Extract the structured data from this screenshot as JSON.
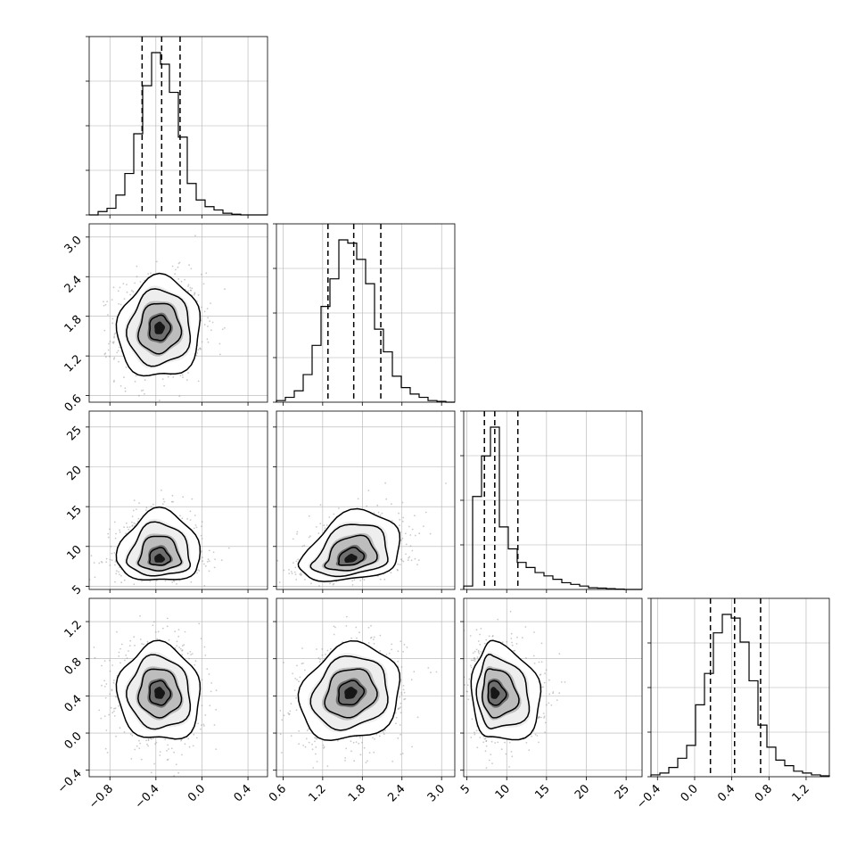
{
  "chart_data": {
    "type": "corner",
    "title": "",
    "grid": true,
    "parameters": [
      {
        "range": [
          -0.98,
          0.57
        ],
        "ticks": [
          -0.8,
          -0.4,
          0.0,
          0.4
        ],
        "tick_labels": [
          "−0.8",
          "−0.4",
          "0.0",
          "0.4"
        ],
        "quantiles": [
          -0.52,
          -0.35,
          -0.19
        ]
      },
      {
        "range": [
          0.5,
          3.2
        ],
        "ticks": [
          0.6,
          1.2,
          1.8,
          2.4,
          3.0
        ],
        "tick_labels": [
          "0.6",
          "1.2",
          "1.8",
          "2.4",
          "3.0"
        ],
        "quantiles": [
          1.28,
          1.67,
          2.08
        ]
      },
      {
        "range": [
          4.6,
          27.0
        ],
        "ticks": [
          5,
          10,
          15,
          20,
          25
        ],
        "tick_labels": [
          "5",
          "10",
          "15",
          "20",
          "25"
        ],
        "quantiles": [
          7.2,
          8.5,
          11.4
        ]
      },
      {
        "range": [
          -0.47,
          1.45
        ],
        "ticks": [
          -0.4,
          0.0,
          0.4,
          0.8,
          1.2
        ],
        "tick_labels": [
          "−0.4",
          "0.0",
          "0.4",
          "0.8",
          "1.2"
        ],
        "quantiles": [
          0.17,
          0.43,
          0.71
        ]
      }
    ],
    "histograms": [
      {
        "bin_start": -0.98,
        "bin_width": 0.0775,
        "counts": [
          0,
          0.02,
          0.04,
          0.12,
          0.25,
          0.49,
          0.78,
          0.98,
          0.91,
          0.74,
          0.47,
          0.19,
          0.09,
          0.05,
          0.03,
          0.01,
          0.004,
          0,
          0,
          0
        ]
      },
      {
        "bin_start": 0.5,
        "bin_width": 0.135,
        "counts": [
          0.01,
          0.03,
          0.07,
          0.17,
          0.35,
          0.59,
          0.76,
          1.0,
          0.98,
          0.88,
          0.73,
          0.45,
          0.31,
          0.16,
          0.09,
          0.05,
          0.03,
          0.01,
          0.005,
          0
        ]
      },
      {
        "bin_start": 4.6,
        "bin_width": 1.12,
        "counts": [
          0.02,
          0.55,
          0.79,
          0.96,
          0.37,
          0.24,
          0.16,
          0.13,
          0.1,
          0.08,
          0.06,
          0.04,
          0.03,
          0.02,
          0.01,
          0.008,
          0.005,
          0.002,
          0,
          0
        ]
      },
      {
        "bin_start": -0.47,
        "bin_width": 0.096,
        "counts": [
          0.01,
          0.02,
          0.05,
          0.1,
          0.17,
          0.39,
          0.56,
          0.78,
          0.88,
          0.86,
          0.73,
          0.52,
          0.28,
          0.16,
          0.09,
          0.06,
          0.03,
          0.02,
          0.01,
          0.005
        ]
      }
    ],
    "pairs": [
      {
        "x": 0,
        "y": 1,
        "center": [
          -0.37,
          1.62
        ],
        "spread": [
          0.18,
          0.38
        ],
        "rho": 0.05,
        "skew": 0
      },
      {
        "x": 0,
        "y": 2,
        "center": [
          -0.37,
          8.3
        ],
        "spread": [
          0.18,
          1.9
        ],
        "rho": 0.02,
        "skew": 1.6
      },
      {
        "x": 1,
        "y": 2,
        "center": [
          1.62,
          8.3
        ],
        "spread": [
          0.38,
          1.9
        ],
        "rho": 0.3,
        "skew": 1.6
      },
      {
        "x": 0,
        "y": 3,
        "center": [
          -0.37,
          0.43
        ],
        "spread": [
          0.18,
          0.26
        ],
        "rho": -0.05,
        "skew": 0
      },
      {
        "x": 1,
        "y": 3,
        "center": [
          1.62,
          0.43
        ],
        "spread": [
          0.38,
          0.26
        ],
        "rho": 0.15,
        "skew": 0
      },
      {
        "x": 2,
        "y": 3,
        "center": [
          8.3,
          0.43
        ],
        "spread": [
          1.9,
          0.26
        ],
        "rho": -0.1,
        "skew": -1.6
      }
    ]
  }
}
